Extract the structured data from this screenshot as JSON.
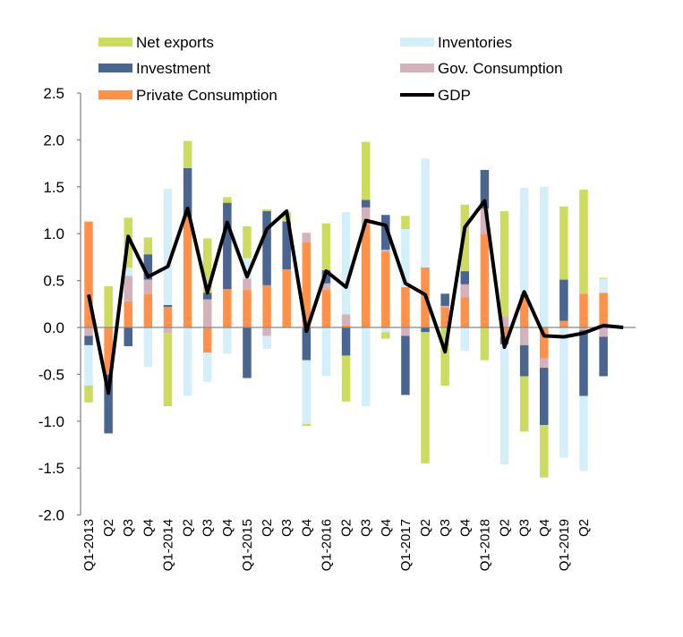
{
  "chart_data": {
    "type": "bar",
    "stacked": true,
    "categories": [
      "Q1-2013",
      "Q2",
      "Q3",
      "Q4",
      "Q1-2014",
      "Q2",
      "Q3",
      "Q4",
      "Q1-2015",
      "Q2",
      "Q3",
      "Q4",
      "Q1-2016",
      "Q2",
      "Q3",
      "Q4",
      "Q1-2017",
      "Q2",
      "Q3",
      "Q4",
      "Q1-2018",
      "Q2",
      "Q3",
      "Q4",
      "Q1-2019",
      "Q2",
      "",
      ""
    ],
    "yticks": [
      "2.5",
      "2.0",
      "1.5",
      "1.0",
      "0.5",
      "0.0",
      "-0.5",
      "-1.0",
      "-1.5",
      "-2.0"
    ],
    "ylim": [
      -2.0,
      2.5
    ],
    "grid": false,
    "legend_position": "top",
    "series": [
      {
        "name": "Private Consumption",
        "color": "#ff914a",
        "values": [
          1.13,
          -0.49,
          0.28,
          0.36,
          0.22,
          1.18,
          -0.27,
          0.41,
          0.4,
          0.45,
          0.62,
          0.91,
          0.4,
          0.02,
          1.1,
          0.81,
          0.43,
          0.64,
          0.21,
          0.32,
          1.0,
          -0.1,
          0.35,
          -0.33,
          0.07,
          0.36,
          0.37,
          null
        ]
      },
      {
        "name": "Gov. Consumption",
        "color": "#d4b2bb",
        "values": [
          -0.09,
          -0.01,
          0.27,
          0.15,
          -0.06,
          0,
          0.3,
          0,
          0.12,
          -0.09,
          0,
          0.1,
          0.07,
          0.12,
          0.18,
          0.02,
          -0.09,
          0,
          0.02,
          0.14,
          0.27,
          0.12,
          -0.19,
          -0.1,
          0,
          -0.03,
          -0.1,
          null
        ]
      },
      {
        "name": "Investment",
        "color": "#4a658f",
        "values": [
          -0.1,
          -0.63,
          -0.2,
          0.27,
          0.02,
          0.52,
          0.07,
          0.92,
          -0.54,
          0.79,
          0.51,
          -0.35,
          0.14,
          -0.3,
          0.08,
          0.37,
          -0.63,
          -0.05,
          0.13,
          0.14,
          0.41,
          -0.08,
          -0.33,
          -0.61,
          0.44,
          -0.7,
          -0.42,
          null
        ]
      },
      {
        "name": "Inventories",
        "color": "#d5effa",
        "values": [
          -0.43,
          0,
          0.09,
          -0.42,
          1.24,
          -0.73,
          -0.31,
          -0.28,
          0.22,
          -0.14,
          0,
          -0.68,
          -0.52,
          1.09,
          -0.84,
          -0.05,
          0.62,
          1.16,
          0,
          -0.25,
          0,
          -1.28,
          1.14,
          1.5,
          -1.39,
          -0.8,
          0.15,
          null
        ]
      },
      {
        "name": "Net exports",
        "color": "#cddc5f",
        "values": [
          -0.18,
          0.44,
          0.53,
          0.18,
          -0.78,
          0.29,
          0.58,
          0.06,
          0.34,
          0.02,
          0.1,
          -0.02,
          0.5,
          -0.49,
          0.62,
          -0.07,
          0.14,
          -1.4,
          -0.62,
          0.71,
          -0.35,
          1.12,
          -0.59,
          -0.56,
          0.78,
          1.11,
          0.01,
          null
        ]
      }
    ],
    "line": {
      "name": "GDP",
      "color": "#000000",
      "values": [
        0.35,
        -0.7,
        0.97,
        0.54,
        0.65,
        1.27,
        0.37,
        1.12,
        0.54,
        1.05,
        1.24,
        -0.04,
        0.6,
        0.43,
        1.14,
        1.09,
        0.47,
        0.35,
        -0.26,
        1.07,
        1.35,
        -0.21,
        0.38,
        -0.09,
        -0.1,
        -0.06,
        0.02,
        0.0
      ]
    },
    "legend": [
      {
        "label": "Net exports",
        "kind": "bar",
        "color": "#cddc5f"
      },
      {
        "label": "Inventories",
        "kind": "bar",
        "color": "#d5effa"
      },
      {
        "label": "Investment",
        "kind": "bar",
        "color": "#4a658f"
      },
      {
        "label": "Gov. Consumption",
        "kind": "bar",
        "color": "#d4b2bb"
      },
      {
        "label": "Private Consumption",
        "kind": "bar",
        "color": "#ff914a"
      },
      {
        "label": "GDP",
        "kind": "line",
        "color": "#000000"
      }
    ]
  }
}
